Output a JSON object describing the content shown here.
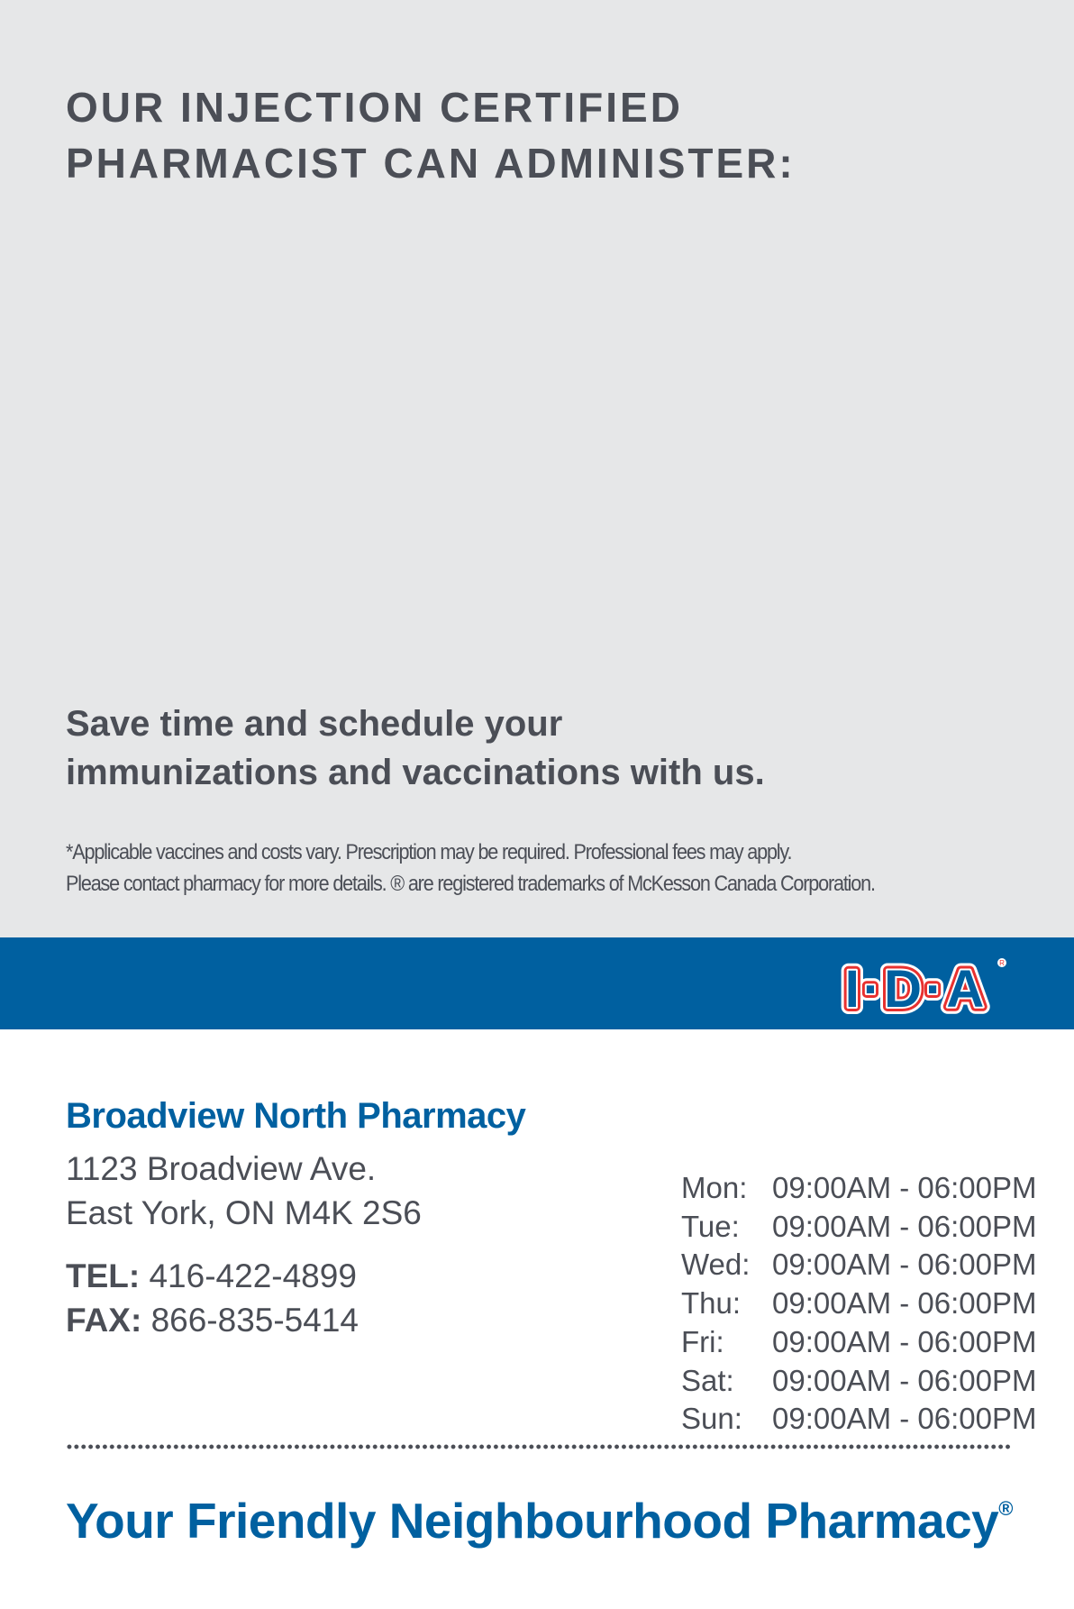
{
  "header": {
    "title_line1": "OUR INJECTION CERTIFIED",
    "title_line2": "PHARMACIST CAN ADMINISTER:"
  },
  "promo": {
    "line1": "Save time and schedule your",
    "line2": "immunizations and vaccinations with us."
  },
  "disclaimer": {
    "line1": "*Applicable vaccines and costs vary. Prescription may be required. Professional fees may apply.",
    "line2": "Please contact pharmacy for more details. ® are registered trademarks of McKesson Canada Corporation."
  },
  "logo": {
    "text": "I·D·A",
    "colors": {
      "band": "#0060a0",
      "outline": "#e8312f"
    }
  },
  "pharmacy": {
    "name": "Broadview North Pharmacy",
    "address_line1": "1123 Broadview Ave.",
    "address_line2": "East York, ON M4K 2S6",
    "tel_label": "TEL:",
    "tel": "416-422-4899",
    "fax_label": "FAX:",
    "fax": "866-835-5414"
  },
  "hours": [
    {
      "day": "Mon:",
      "time": "09:00AM - 06:00PM"
    },
    {
      "day": "Tue:",
      "time": "09:00AM - 06:00PM"
    },
    {
      "day": "Wed:",
      "time": "09:00AM - 06:00PM"
    },
    {
      "day": "Thu:",
      "time": "09:00AM - 06:00PM"
    },
    {
      "day": "Fri:",
      "time": "09:00AM - 06:00PM"
    },
    {
      "day": "Sat:",
      "time": "09:00AM - 06:00PM"
    },
    {
      "day": "Sun:",
      "time": "09:00AM - 06:00PM"
    }
  ],
  "footer": {
    "tagline": "Your Friendly Neighbourhood Pharmacy",
    "registered": "®"
  }
}
